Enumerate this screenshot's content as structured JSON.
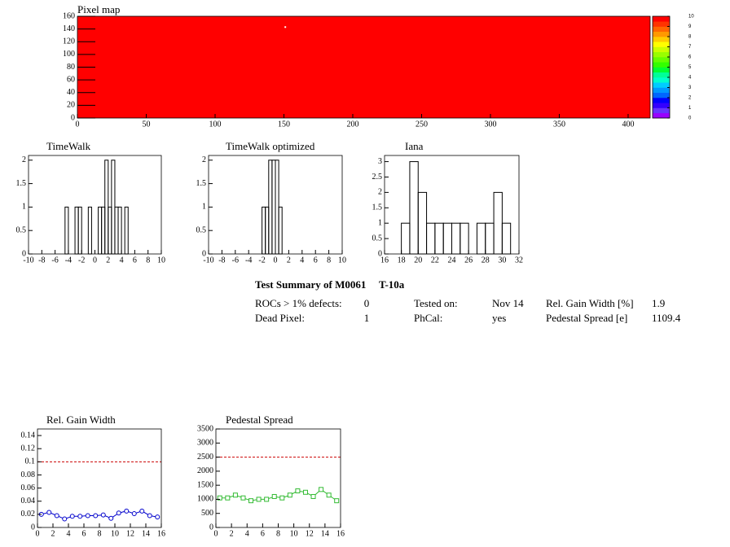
{
  "chart_data": [
    {
      "type": "heatmap",
      "title": "Pixel map",
      "xlim": [
        0,
        416
      ],
      "ylim": [
        0,
        160
      ],
      "xticks": [
        0,
        50,
        100,
        150,
        200,
        250,
        300,
        350,
        400
      ],
      "yticks": [
        0,
        20,
        40,
        60,
        80,
        100,
        120,
        140,
        160
      ],
      "z": 10,
      "zlim": [
        0,
        10
      ],
      "zticks": [
        0,
        1,
        2,
        3,
        4,
        5,
        6,
        7,
        8,
        9,
        10
      ],
      "palette": [
        "#9900ff",
        "#6633ff",
        "#3300ff",
        "#0000ff",
        "#0066ff",
        "#0099ff",
        "#00ccff",
        "#00ffcc",
        "#00ff99",
        "#00ff33",
        "#33ff00",
        "#66ff00",
        "#99ff00",
        "#ccff00",
        "#ffff00",
        "#ffcc00",
        "#ff9900",
        "#ff6600",
        "#ff3300",
        "#ff0000"
      ],
      "empty_pixels": {
        "x": [
          151
        ],
        "y": [
          143
        ],
        "color": "#ffffff"
      }
    },
    {
      "type": "histogram",
      "title": "TimeWalk",
      "xlim": [
        -10,
        10
      ],
      "ylim": [
        0,
        2.1
      ],
      "xticks": [
        -10,
        -8,
        -6,
        -4,
        -2,
        0,
        2,
        4,
        6,
        8,
        10
      ],
      "yticks": [
        0,
        0.5,
        1,
        1.5,
        2
      ],
      "color": "#000000",
      "bins": [
        -4.5,
        -4,
        -3.5,
        -3,
        -2.5,
        -2,
        -1.5,
        -1,
        -0.5,
        0,
        0.5,
        1,
        1.5,
        2,
        2.5,
        3,
        3.5,
        4,
        4.5,
        5
      ],
      "counts": [
        1,
        0,
        0,
        1,
        1,
        0,
        0,
        1,
        0,
        0,
        1,
        1,
        2,
        1,
        2,
        1,
        1,
        0,
        1
      ]
    },
    {
      "type": "histogram",
      "title": "TimeWalk optimized",
      "xlim": [
        -10,
        10
      ],
      "ylim": [
        0,
        2.1
      ],
      "xticks": [
        -10,
        -8,
        -6,
        -4,
        -2,
        0,
        2,
        4,
        6,
        8,
        10
      ],
      "yticks": [
        0,
        0.5,
        1,
        1.5,
        2
      ],
      "color": "#000000",
      "bins": [
        -2,
        -1.5,
        -1,
        -0.5,
        0,
        0.5,
        1
      ],
      "counts": [
        1,
        1,
        2,
        2,
        2,
        1
      ]
    },
    {
      "type": "histogram",
      "title": "Iana",
      "xlim": [
        16,
        32
      ],
      "ylim": [
        0,
        3.2
      ],
      "xticks": [
        16,
        18,
        20,
        22,
        24,
        26,
        28,
        30,
        32
      ],
      "yticks": [
        0,
        0.5,
        1,
        1.5,
        2,
        2.5,
        3
      ],
      "color": "#000000",
      "bins": [
        18,
        19,
        20,
        21,
        22,
        23,
        24,
        25,
        26,
        27,
        28,
        29,
        30,
        31
      ],
      "counts": [
        1,
        3,
        2,
        1,
        1,
        1,
        1,
        1,
        0,
        1,
        1,
        2,
        1
      ]
    },
    {
      "type": "line",
      "title": "Rel. Gain Width",
      "xlim": [
        0,
        16
      ],
      "ylim": [
        0,
        0.15
      ],
      "xticks": [
        0,
        2,
        4,
        6,
        8,
        10,
        12,
        14,
        16
      ],
      "yticks": [
        0,
        0.02,
        0.04,
        0.06,
        0.08,
        0.1,
        0.12,
        0.14
      ],
      "ref_line": 0.1,
      "ref_color": "#cc0000",
      "series": [
        {
          "color": "#0000cc",
          "marker": "circle",
          "x": [
            0.5,
            1.5,
            2.5,
            3.5,
            4.5,
            5.5,
            6.5,
            7.5,
            8.5,
            9.5,
            10.5,
            11.5,
            12.5,
            13.5,
            14.5,
            15.5
          ],
          "values": [
            0.02,
            0.023,
            0.018,
            0.013,
            0.017,
            0.017,
            0.018,
            0.018,
            0.019,
            0.014,
            0.022,
            0.025,
            0.021,
            0.025,
            0.018,
            0.016
          ]
        }
      ]
    },
    {
      "type": "line",
      "title": "Pedestal Spread",
      "xlim": [
        0,
        16
      ],
      "ylim": [
        0,
        3500
      ],
      "xticks": [
        0,
        2,
        4,
        6,
        8,
        10,
        12,
        14,
        16
      ],
      "yticks": [
        0,
        500,
        1000,
        1500,
        2000,
        2500,
        3000,
        3500
      ],
      "ref_line": 2500,
      "ref_color": "#cc0000",
      "series": [
        {
          "color": "#33bb33",
          "marker": "square",
          "x": [
            0.5,
            1.5,
            2.5,
            3.5,
            4.5,
            5.5,
            6.5,
            7.5,
            8.5,
            9.5,
            10.5,
            11.5,
            12.5,
            13.5,
            14.5,
            15.5
          ],
          "values": [
            1050,
            1050,
            1150,
            1050,
            950,
            1000,
            1000,
            1100,
            1050,
            1150,
            1300,
            1250,
            1100,
            1350,
            1150,
            950
          ]
        }
      ]
    }
  ],
  "summary": {
    "title": "Test Summary of M0061",
    "module": "T-10a",
    "items": [
      {
        "label": "ROCs > 1% defects:",
        "value": 0
      },
      {
        "label": "Dead Pixel:",
        "value": 1
      },
      {
        "label": "Tested on:",
        "value": "Nov 14"
      },
      {
        "label": "PhCal:",
        "value": "yes"
      },
      {
        "label": "Rel. Gain Width [%]",
        "value": 1.9
      },
      {
        "label": "Pedestal Spread [e]",
        "value": 1109.4
      }
    ]
  }
}
